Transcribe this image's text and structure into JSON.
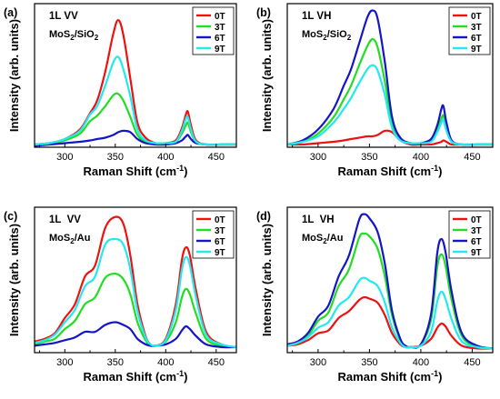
{
  "colors": {
    "0T": "#ee1111",
    "3T": "#22dd22",
    "6T": "#1515c8",
    "9T": "#22e8f0"
  },
  "chart_data": [
    {
      "type": "line",
      "label": "(a)",
      "title": "1L VV",
      "substrate": [
        "MoS",
        "2",
        "/SiO",
        "2"
      ],
      "xlabel": "Raman Shift (cm",
      "xlabel_sup": "-1",
      "xlabel_end": ")",
      "ylabel": "Intensity (arb. units)",
      "xlim": [
        270,
        470
      ],
      "ylim": [
        0,
        1.05
      ],
      "xticks": [
        300,
        350,
        400,
        450
      ],
      "legend_position": "top-right",
      "x": [
        270,
        285,
        300,
        315,
        325,
        332,
        340,
        348,
        353,
        358,
        365,
        372,
        380,
        390,
        400,
        410,
        416,
        420,
        422,
        425,
        430,
        440,
        455,
        470
      ],
      "series": [
        {
          "name": "0T",
          "values": [
            0.02,
            0.03,
            0.06,
            0.13,
            0.25,
            0.34,
            0.55,
            0.83,
            0.93,
            0.82,
            0.5,
            0.18,
            0.07,
            0.03,
            0.03,
            0.05,
            0.14,
            0.24,
            0.26,
            0.16,
            0.05,
            0.02,
            0.02,
            0.02
          ]
        },
        {
          "name": "3T",
          "values": [
            0.02,
            0.03,
            0.05,
            0.1,
            0.19,
            0.23,
            0.3,
            0.38,
            0.39,
            0.34,
            0.22,
            0.09,
            0.04,
            0.03,
            0.03,
            0.04,
            0.1,
            0.16,
            0.18,
            0.11,
            0.04,
            0.02,
            0.02,
            0.02
          ]
        },
        {
          "name": "6T",
          "values": [
            0.01,
            0.02,
            0.03,
            0.04,
            0.05,
            0.06,
            0.07,
            0.09,
            0.11,
            0.12,
            0.11,
            0.06,
            0.03,
            0.02,
            0.02,
            0.03,
            0.05,
            0.08,
            0.09,
            0.06,
            0.03,
            0.02,
            0.02,
            0.02
          ]
        },
        {
          "name": "9T",
          "values": [
            0.02,
            0.03,
            0.06,
            0.12,
            0.24,
            0.3,
            0.45,
            0.62,
            0.66,
            0.57,
            0.37,
            0.13,
            0.05,
            0.03,
            0.03,
            0.04,
            0.12,
            0.21,
            0.22,
            0.13,
            0.04,
            0.02,
            0.02,
            0.02
          ]
        }
      ]
    },
    {
      "type": "line",
      "label": "(b)",
      "title": "1L VH",
      "substrate": [
        "MoS",
        "2",
        "/SiO",
        "2"
      ],
      "xlabel": "Raman Shift (cm",
      "xlabel_sup": "-1",
      "xlabel_end": ")",
      "ylabel": "Intensity (arb. units)",
      "xlim": [
        270,
        470
      ],
      "ylim": [
        0,
        1.05
      ],
      "xticks": [
        300,
        350,
        400,
        450
      ],
      "legend_position": "top-right",
      "x": [
        270,
        285,
        300,
        315,
        325,
        332,
        340,
        348,
        353,
        358,
        365,
        372,
        380,
        390,
        400,
        410,
        416,
        420,
        422,
        425,
        430,
        440,
        455,
        470
      ],
      "series": [
        {
          "name": "0T",
          "values": [
            0.02,
            0.02,
            0.03,
            0.04,
            0.05,
            0.06,
            0.07,
            0.08,
            0.08,
            0.09,
            0.12,
            0.11,
            0.05,
            0.02,
            0.02,
            0.02,
            0.03,
            0.04,
            0.05,
            0.04,
            0.02,
            0.02,
            0.02,
            0.02
          ]
        },
        {
          "name": "3T",
          "values": [
            0.02,
            0.04,
            0.1,
            0.22,
            0.35,
            0.45,
            0.6,
            0.74,
            0.79,
            0.73,
            0.48,
            0.18,
            0.06,
            0.03,
            0.03,
            0.05,
            0.13,
            0.21,
            0.23,
            0.14,
            0.04,
            0.02,
            0.02,
            0.02
          ]
        },
        {
          "name": "6T",
          "values": [
            0.02,
            0.05,
            0.13,
            0.28,
            0.45,
            0.57,
            0.76,
            0.95,
            1.0,
            0.94,
            0.62,
            0.22,
            0.07,
            0.03,
            0.03,
            0.06,
            0.16,
            0.28,
            0.3,
            0.18,
            0.05,
            0.02,
            0.02,
            0.02
          ]
        },
        {
          "name": "9T",
          "values": [
            0.02,
            0.04,
            0.08,
            0.18,
            0.28,
            0.36,
            0.47,
            0.57,
            0.6,
            0.56,
            0.38,
            0.14,
            0.05,
            0.03,
            0.03,
            0.04,
            0.11,
            0.18,
            0.2,
            0.12,
            0.04,
            0.02,
            0.02,
            0.02
          ]
        }
      ]
    },
    {
      "type": "line",
      "label": "(c)",
      "title": "1L  VV",
      "substrate": [
        "MoS",
        "2",
        "/Au",
        ""
      ],
      "xlabel": "Raman Shift (cm",
      "xlabel_sup": "-1",
      "xlabel_end": ")",
      "ylabel": "Intensity (arb. units)",
      "xlim": [
        270,
        470
      ],
      "ylim": [
        0,
        1.05
      ],
      "xticks": [
        300,
        350,
        400,
        450
      ],
      "legend_position": "top-right",
      "x": [
        270,
        280,
        290,
        300,
        310,
        320,
        330,
        340,
        350,
        358,
        365,
        372,
        380,
        385,
        390,
        400,
        410,
        416,
        420,
        424,
        430,
        440,
        455,
        470
      ],
      "series": [
        {
          "name": "0T",
          "values": [
            0.08,
            0.1,
            0.14,
            0.25,
            0.35,
            0.55,
            0.63,
            0.9,
            0.98,
            0.93,
            0.7,
            0.35,
            0.12,
            0.06,
            0.05,
            0.1,
            0.35,
            0.67,
            0.76,
            0.7,
            0.45,
            0.15,
            0.06,
            0.04
          ]
        },
        {
          "name": "3T",
          "values": [
            0.06,
            0.08,
            0.1,
            0.17,
            0.23,
            0.35,
            0.4,
            0.54,
            0.57,
            0.53,
            0.42,
            0.22,
            0.09,
            0.05,
            0.05,
            0.08,
            0.22,
            0.4,
            0.46,
            0.42,
            0.28,
            0.1,
            0.05,
            0.04
          ]
        },
        {
          "name": "6T",
          "values": [
            0.05,
            0.06,
            0.07,
            0.09,
            0.11,
            0.15,
            0.15,
            0.2,
            0.22,
            0.2,
            0.17,
            0.1,
            0.06,
            0.05,
            0.05,
            0.06,
            0.1,
            0.16,
            0.19,
            0.17,
            0.12,
            0.06,
            0.04,
            0.04
          ]
        },
        {
          "name": "9T",
          "values": [
            0.07,
            0.09,
            0.13,
            0.22,
            0.31,
            0.48,
            0.55,
            0.78,
            0.82,
            0.78,
            0.6,
            0.3,
            0.11,
            0.06,
            0.05,
            0.09,
            0.31,
            0.6,
            0.69,
            0.63,
            0.4,
            0.13,
            0.06,
            0.04
          ]
        }
      ]
    },
    {
      "type": "line",
      "label": "(d)",
      "title": "1L  VH",
      "substrate": [
        "MoS",
        "2",
        "/Au",
        ""
      ],
      "xlabel": "Raman Shift (cm",
      "xlabel_sup": "-1",
      "xlabel_end": ")",
      "ylabel": "Intensity (arb. units)",
      "xlim": [
        270,
        470
      ],
      "ylim": [
        0,
        1.05
      ],
      "xticks": [
        300,
        350,
        400,
        450
      ],
      "legend_position": "top-right",
      "x": [
        270,
        280,
        290,
        300,
        310,
        320,
        330,
        340,
        345,
        350,
        358,
        365,
        372,
        380,
        385,
        390,
        400,
        410,
        416,
        420,
        424,
        430,
        440,
        455,
        470
      ],
      "series": [
        {
          "name": "0T",
          "values": [
            0.05,
            0.06,
            0.09,
            0.14,
            0.16,
            0.25,
            0.3,
            0.38,
            0.4,
            0.39,
            0.36,
            0.27,
            0.14,
            0.06,
            0.04,
            0.04,
            0.05,
            0.1,
            0.18,
            0.21,
            0.19,
            0.12,
            0.05,
            0.03,
            0.03
          ]
        },
        {
          "name": "3T",
          "values": [
            0.05,
            0.07,
            0.12,
            0.23,
            0.29,
            0.48,
            0.6,
            0.83,
            0.86,
            0.84,
            0.75,
            0.55,
            0.27,
            0.09,
            0.05,
            0.04,
            0.06,
            0.24,
            0.62,
            0.71,
            0.63,
            0.38,
            0.12,
            0.04,
            0.03
          ]
        },
        {
          "name": "6T",
          "values": [
            0.06,
            0.08,
            0.14,
            0.26,
            0.34,
            0.55,
            0.7,
            0.96,
            1.0,
            0.97,
            0.87,
            0.64,
            0.3,
            0.1,
            0.05,
            0.04,
            0.06,
            0.28,
            0.72,
            0.82,
            0.73,
            0.44,
            0.14,
            0.05,
            0.03
          ]
        },
        {
          "name": "9T",
          "values": [
            0.05,
            0.07,
            0.11,
            0.18,
            0.22,
            0.34,
            0.4,
            0.52,
            0.54,
            0.52,
            0.48,
            0.36,
            0.18,
            0.07,
            0.04,
            0.04,
            0.05,
            0.15,
            0.37,
            0.44,
            0.39,
            0.24,
            0.08,
            0.04,
            0.03
          ]
        }
      ]
    }
  ]
}
